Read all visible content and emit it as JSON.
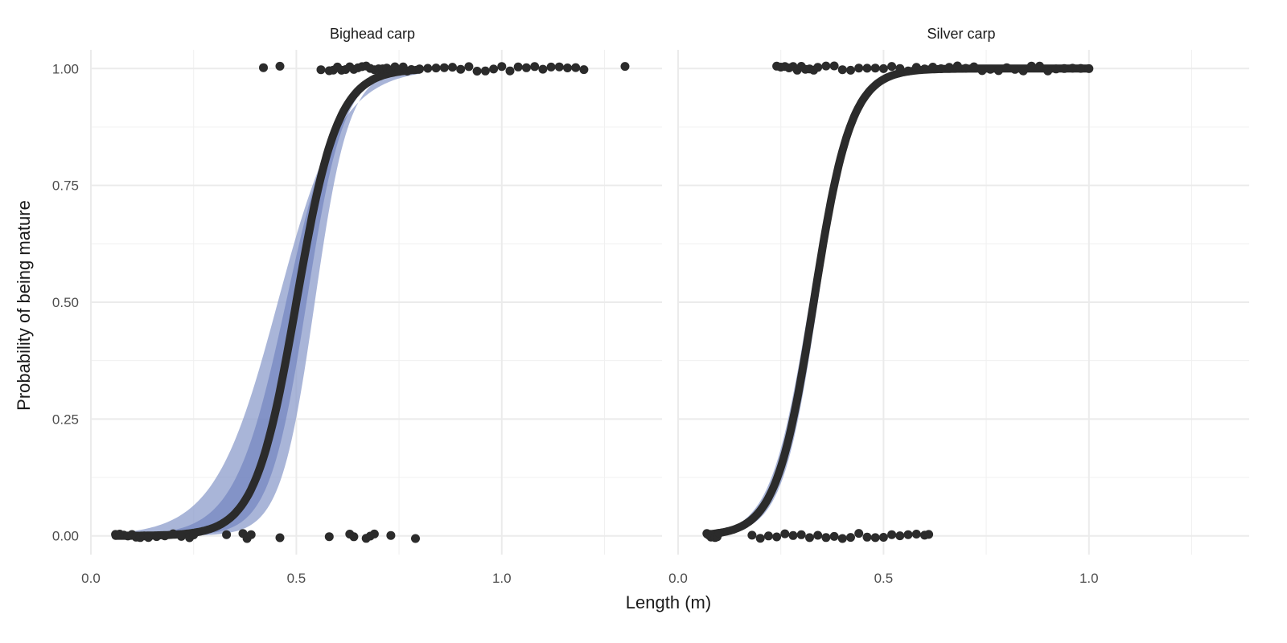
{
  "chart_data": {
    "type": "scatter",
    "ylabel": "Probability of being mature",
    "xlabel": "Length (m)",
    "x_ticks": [
      "0.0",
      "0.5",
      "1.0"
    ],
    "y_ticks": [
      "0.00",
      "0.25",
      "0.50",
      "0.75",
      "1.00"
    ],
    "xlim": [
      0.0,
      1.39
    ],
    "ylim": [
      -0.04,
      1.04
    ],
    "grid": true,
    "legend": "none",
    "colors": {
      "curve": "#2b2b2b",
      "points": "#2b2b2b",
      "band_outer": "#8c9ccb",
      "band_inner": "#6a7dbd"
    },
    "panels": [
      {
        "title": "Bighead carp",
        "curve": {
          "midpoint": 0.5,
          "slope": 20
        },
        "band_outer": {
          "lower_midpoint": 0.455,
          "lower_slope": 13,
          "upper_midpoint": 0.545,
          "upper_slope": 24
        },
        "band_inner": {
          "lower_midpoint": 0.475,
          "lower_slope": 16,
          "upper_midpoint": 0.525,
          "upper_slope": 22
        },
        "curve_x_range": [
          0.06,
          0.8
        ],
        "points_mature": [
          0.42,
          0.46,
          0.56,
          0.58,
          0.59,
          0.6,
          0.61,
          0.62,
          0.63,
          0.64,
          0.65,
          0.66,
          0.67,
          0.68,
          0.69,
          0.7,
          0.71,
          0.72,
          0.73,
          0.74,
          0.75,
          0.76,
          0.77,
          0.78,
          0.8,
          0.82,
          0.84,
          0.86,
          0.88,
          0.9,
          0.92,
          0.94,
          0.96,
          0.98,
          1.0,
          1.02,
          1.04,
          1.06,
          1.08,
          1.1,
          1.12,
          1.14,
          1.16,
          1.18,
          1.2,
          1.3
        ],
        "points_immature": [
          0.06,
          0.07,
          0.08,
          0.09,
          0.1,
          0.11,
          0.12,
          0.13,
          0.14,
          0.16,
          0.18,
          0.2,
          0.22,
          0.24,
          0.25,
          0.33,
          0.37,
          0.38,
          0.39,
          0.46,
          0.58,
          0.63,
          0.64,
          0.67,
          0.68,
          0.69,
          0.73,
          0.79
        ]
      },
      {
        "title": "Silver carp",
        "curve": {
          "midpoint": 0.33,
          "slope": 22
        },
        "band_outer": {
          "lower_midpoint": 0.32,
          "lower_slope": 21,
          "upper_midpoint": 0.34,
          "upper_slope": 23
        },
        "band_inner": {
          "lower_midpoint": 0.325,
          "lower_slope": 21.5,
          "upper_midpoint": 0.335,
          "upper_slope": 22.5
        },
        "curve_x_range": [
          0.07,
          1.0
        ],
        "points_mature": [
          0.24,
          0.25,
          0.26,
          0.27,
          0.28,
          0.29,
          0.3,
          0.31,
          0.32,
          0.33,
          0.34,
          0.36,
          0.38,
          0.4,
          0.42,
          0.44,
          0.46,
          0.48,
          0.5,
          0.52,
          0.54,
          0.56,
          0.58,
          0.6,
          0.62,
          0.64,
          0.66,
          0.68,
          0.7,
          0.72,
          0.74,
          0.76,
          0.78,
          0.8,
          0.82,
          0.84,
          0.86,
          0.88,
          0.9,
          0.92,
          0.94,
          0.96,
          0.98,
          1.0
        ],
        "points_immature": [
          0.07,
          0.075,
          0.08,
          0.085,
          0.09,
          0.095,
          0.1,
          0.18,
          0.2,
          0.22,
          0.24,
          0.26,
          0.28,
          0.3,
          0.32,
          0.34,
          0.36,
          0.38,
          0.4,
          0.42,
          0.44,
          0.46,
          0.48,
          0.5,
          0.52,
          0.54,
          0.56,
          0.58,
          0.6,
          0.61
        ]
      }
    ]
  }
}
